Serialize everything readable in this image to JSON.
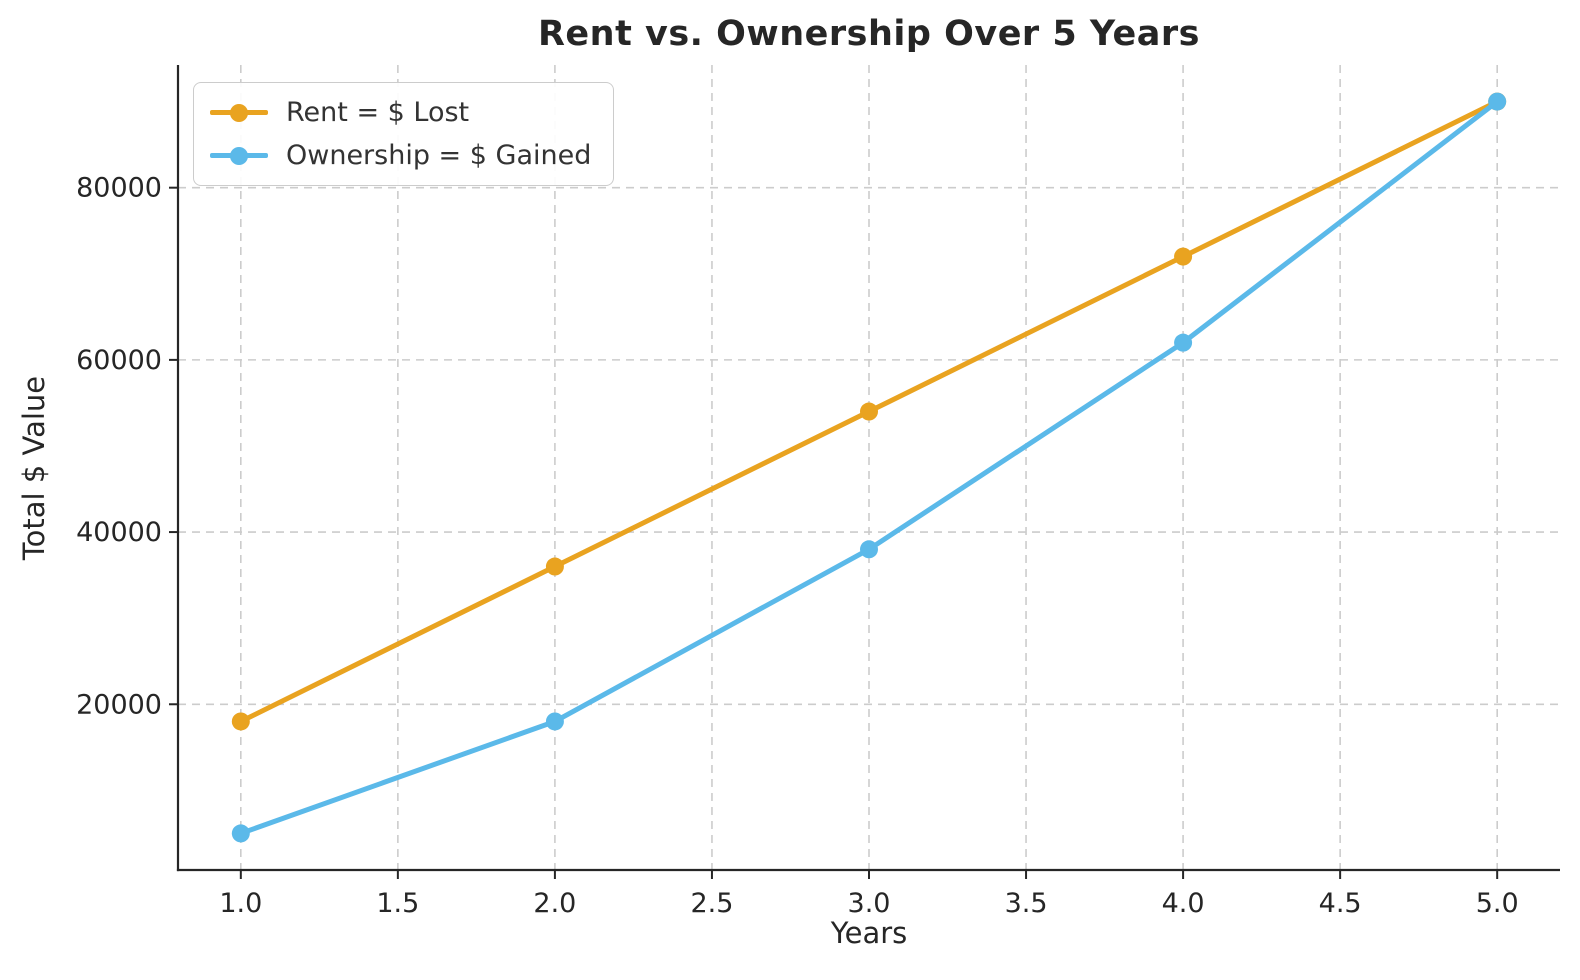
{
  "chart_data": {
    "type": "line",
    "title": "Rent vs. Ownership Over 5 Years",
    "xlabel": "Years",
    "ylabel": "Total $ Value",
    "x": [
      1,
      2,
      3,
      4,
      5
    ],
    "series": [
      {
        "name": "Rent = $ Lost",
        "color": "#E9A320",
        "values": [
          18000,
          36000,
          54000,
          72000,
          90000
        ]
      },
      {
        "name": "Ownership = $ Gained",
        "color": "#5BB9E9",
        "values": [
          5000,
          18000,
          38000,
          62000,
          90000
        ]
      }
    ],
    "xticks": {
      "values": [
        1.0,
        1.5,
        2.0,
        2.5,
        3.0,
        3.5,
        4.0,
        4.5,
        5.0
      ],
      "labels": [
        "1.0",
        "1.5",
        "2.0",
        "2.5",
        "3.0",
        "3.5",
        "4.0",
        "4.5",
        "5.0"
      ]
    },
    "yticks": {
      "values": [
        20000,
        40000,
        60000,
        80000
      ],
      "labels": [
        "20000",
        "40000",
        "60000",
        "80000"
      ]
    },
    "xlim": [
      0.8,
      5.2
    ],
    "ylim": [
      750,
      94250
    ],
    "grid": true,
    "grid_style": "dashed",
    "legend_position": "upper-left",
    "colors": {
      "text": "#262626",
      "tick_label": "#262626",
      "grid": "#cccccc",
      "spine": "#262626",
      "background": "#ffffff"
    }
  }
}
